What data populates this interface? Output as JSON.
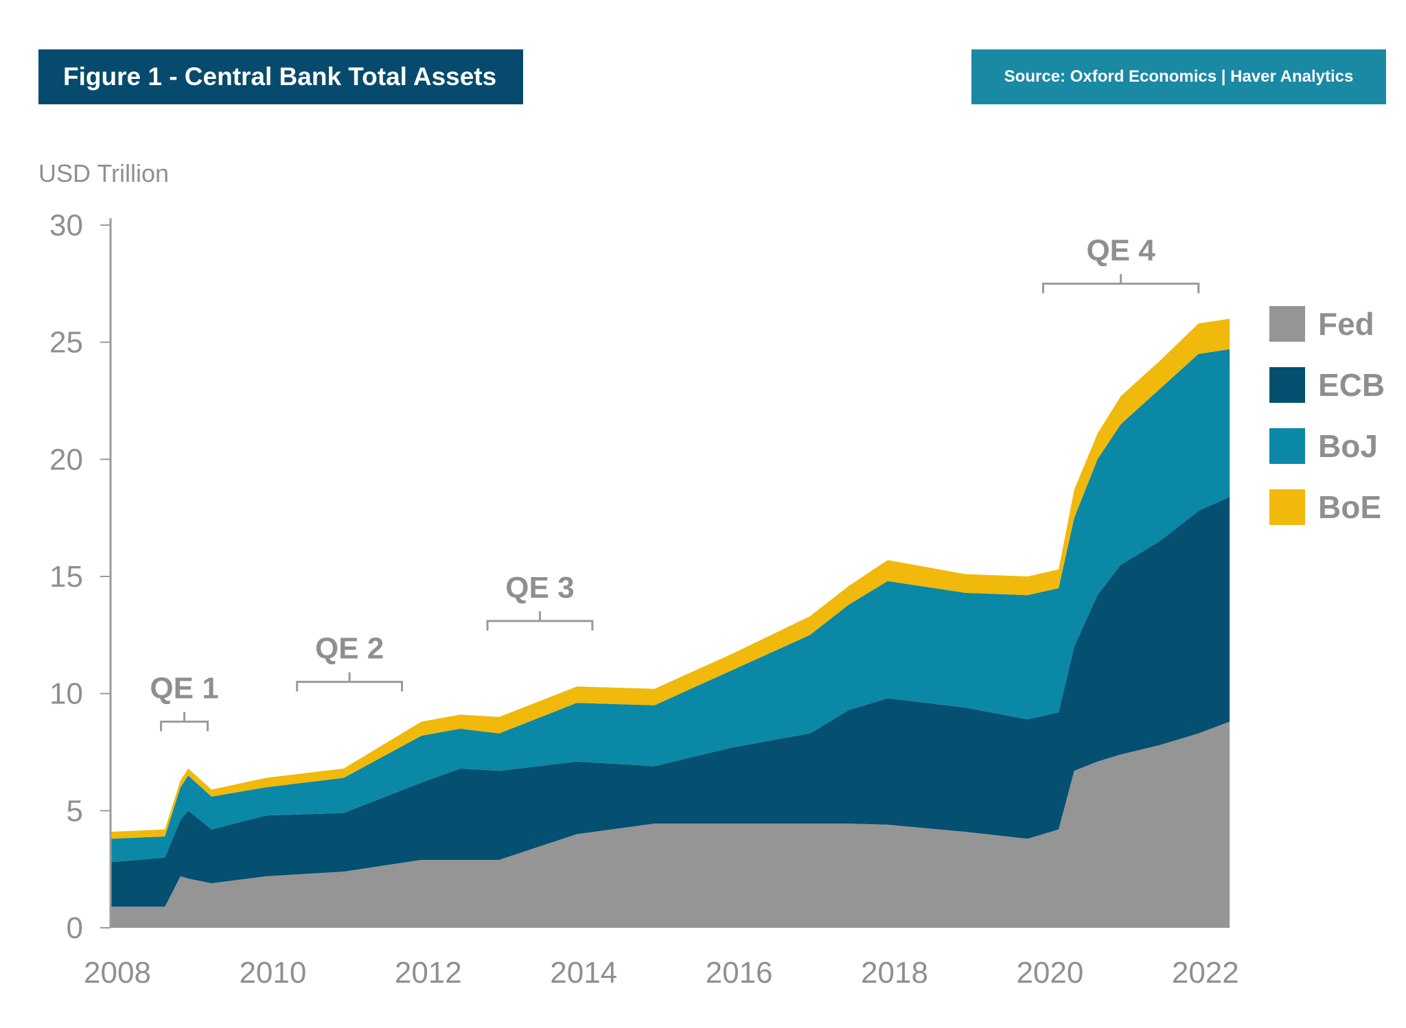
{
  "header": {
    "title": "Figure 1 - Central Bank Total Assets",
    "source": "Source: Oxford Economics | Haver Analytics"
  },
  "chart_data": {
    "type": "area",
    "stacked": true,
    "ylabel": "USD Trillion",
    "xlabel": "",
    "ylim": [
      0,
      30
    ],
    "xlim": [
      2008,
      2022.4
    ],
    "yticks": [
      "0",
      "5",
      "10",
      "15",
      "20",
      "25",
      "30"
    ],
    "xticks": [
      "2008",
      "2010",
      "2012",
      "2014",
      "2016",
      "2018",
      "2020",
      "2022"
    ],
    "grid": false,
    "legend": "right",
    "x": [
      2008.0,
      2008.7,
      2008.9,
      2009.0,
      2009.3,
      2010.0,
      2011.0,
      2012.0,
      2012.5,
      2013.0,
      2014.0,
      2015.0,
      2016.0,
      2017.0,
      2017.5,
      2018.0,
      2019.0,
      2019.8,
      2020.2,
      2020.4,
      2020.7,
      2021.0,
      2021.5,
      2022.0,
      2022.4
    ],
    "series": [
      {
        "name": "Fed",
        "color": "#959595",
        "values": [
          0.9,
          0.9,
          2.2,
          2.1,
          1.9,
          2.2,
          2.4,
          2.9,
          2.9,
          2.9,
          4.0,
          4.45,
          4.45,
          4.45,
          4.45,
          4.4,
          4.1,
          3.8,
          4.2,
          6.7,
          7.1,
          7.4,
          7.8,
          8.3,
          8.8
        ]
      },
      {
        "name": "ECB",
        "color": "#054f70",
        "values": [
          1.9,
          2.1,
          2.4,
          2.9,
          2.3,
          2.6,
          2.5,
          3.3,
          3.9,
          3.8,
          3.1,
          2.45,
          3.25,
          3.85,
          4.85,
          5.4,
          5.3,
          5.1,
          5.0,
          5.3,
          7.1,
          8.1,
          8.7,
          9.5,
          9.6
        ]
      },
      {
        "name": "BoJ",
        "color": "#0b88a6",
        "values": [
          1.0,
          0.9,
          1.4,
          1.5,
          1.4,
          1.2,
          1.5,
          2.0,
          1.7,
          1.6,
          2.5,
          2.6,
          3.3,
          4.2,
          4.5,
          5.0,
          4.9,
          5.3,
          5.3,
          5.5,
          5.8,
          6.0,
          6.5,
          6.7,
          6.3
        ]
      },
      {
        "name": "BoE",
        "color": "#f0b90b",
        "values": [
          0.3,
          0.3,
          0.3,
          0.3,
          0.3,
          0.4,
          0.4,
          0.6,
          0.6,
          0.7,
          0.7,
          0.7,
          0.7,
          0.8,
          0.8,
          0.9,
          0.8,
          0.8,
          0.8,
          1.2,
          1.1,
          1.2,
          1.2,
          1.3,
          1.3
        ]
      }
    ],
    "annotations": [
      {
        "label": "QE 1",
        "start": 2008.65,
        "end": 2009.25,
        "y": 8.8
      },
      {
        "label": "QE 2",
        "start": 2010.4,
        "end": 2011.75,
        "y": 10.5
      },
      {
        "label": "QE 3",
        "start": 2012.85,
        "end": 2014.2,
        "y": 13.1
      },
      {
        "label": "QE 4",
        "start": 2020.0,
        "end": 2022.0,
        "y": 27.5
      }
    ]
  }
}
